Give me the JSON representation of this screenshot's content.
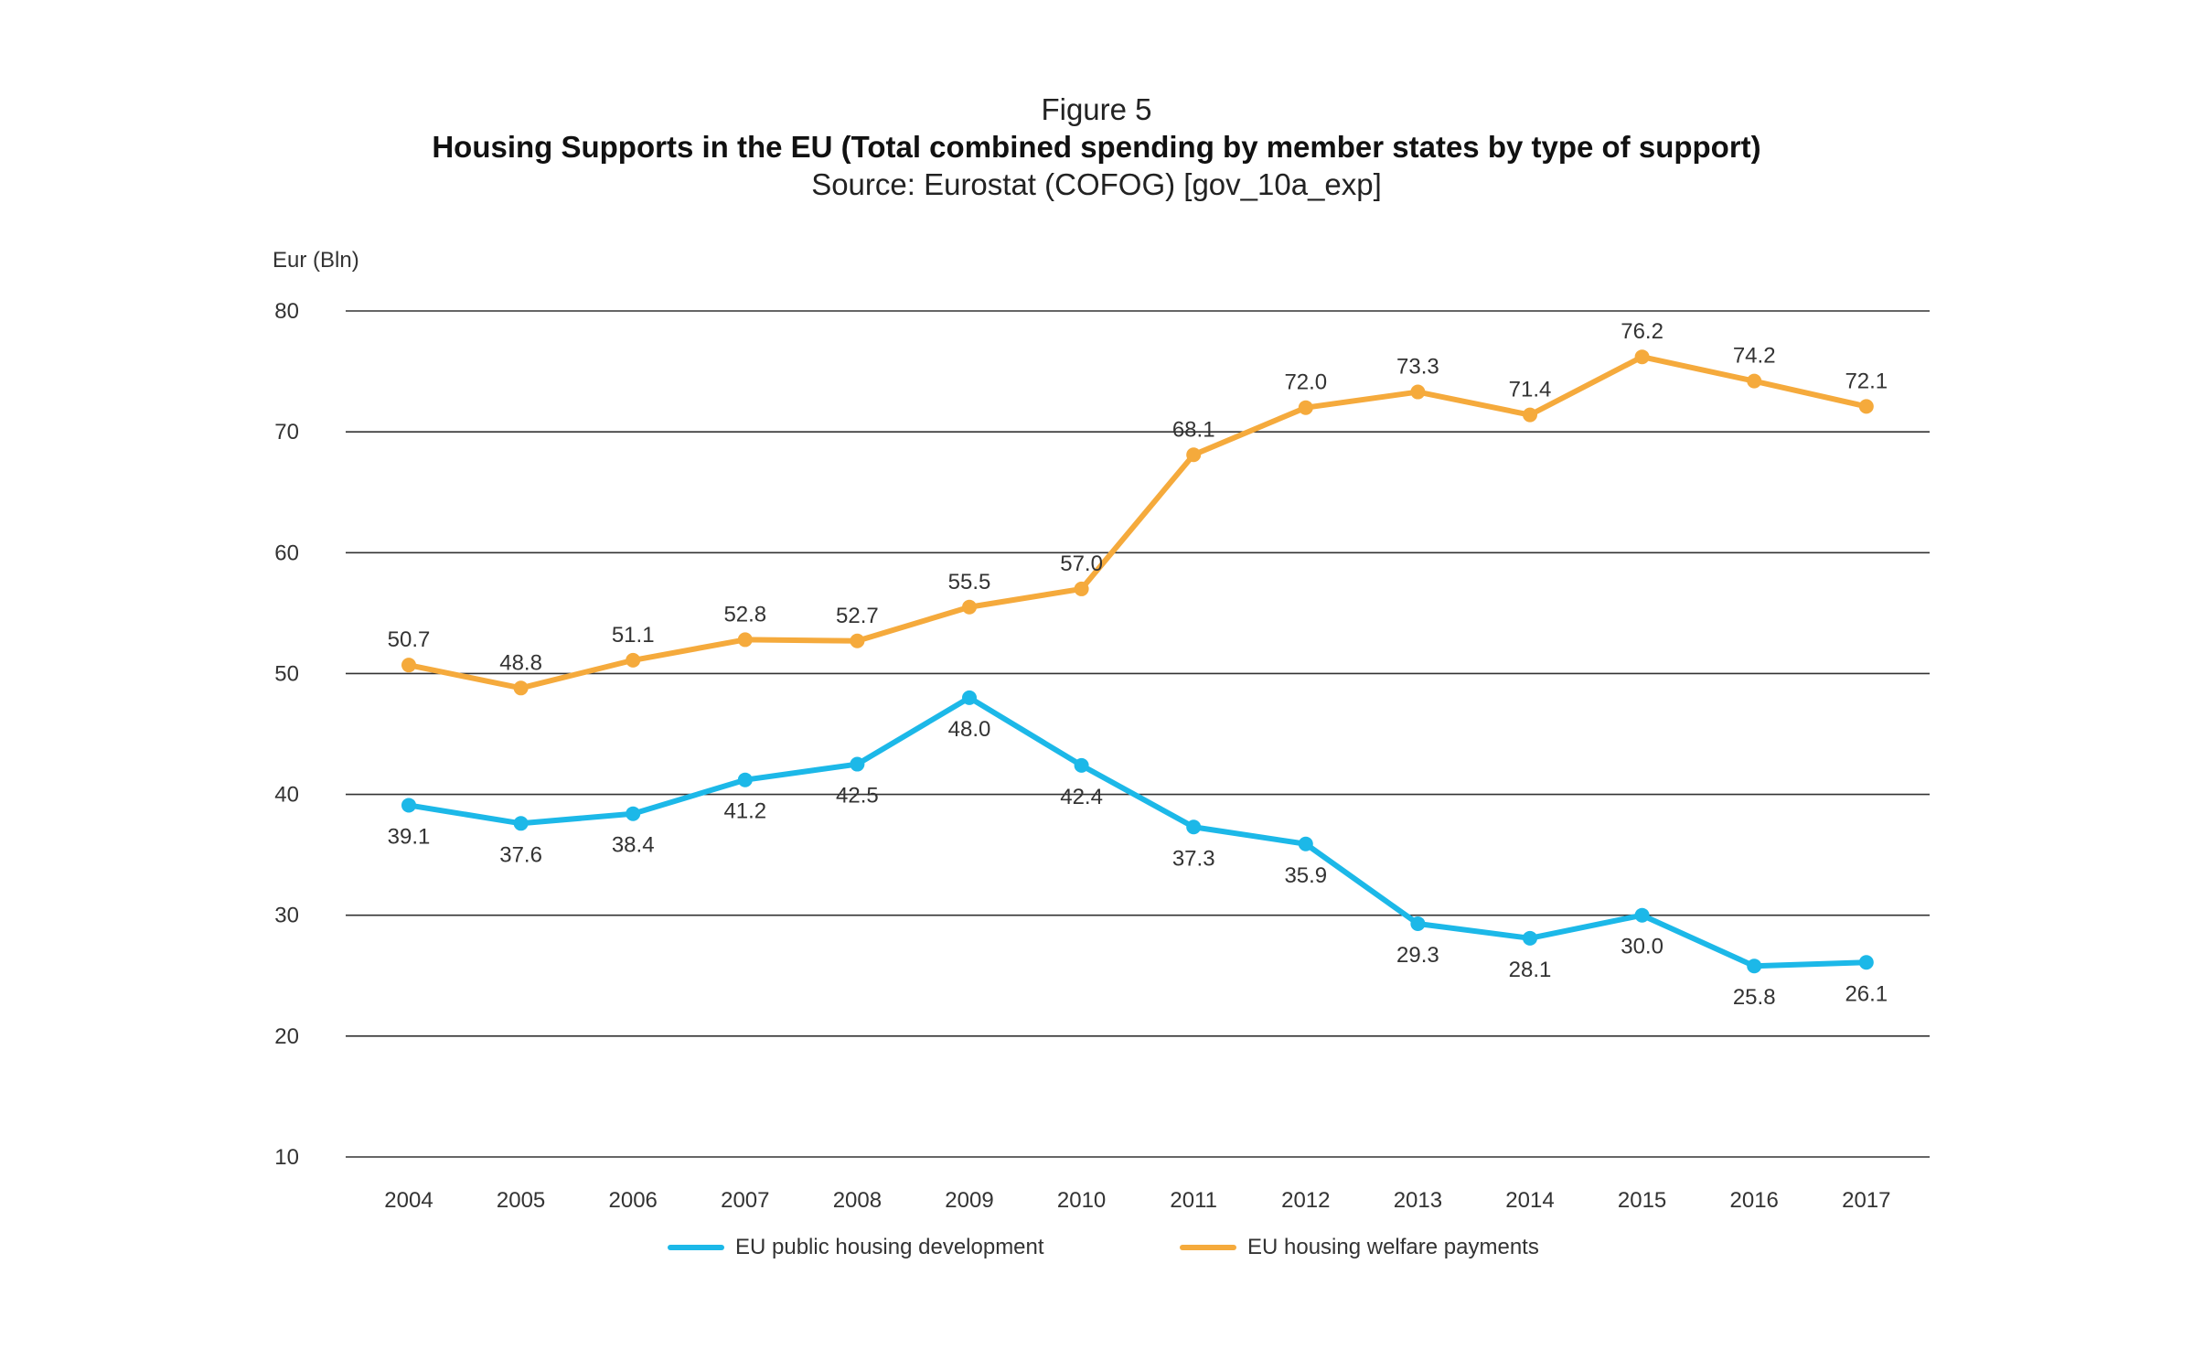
{
  "figure": {
    "label": "Figure 5",
    "title": "Housing Supports in the EU (Total combined spending by member states by type of support)",
    "source": "Source: Eurostat (COFOG) [gov_10a_exp]"
  },
  "chart_data": {
    "type": "line",
    "ylabel": "Eur (Bln)",
    "xlabel": "",
    "ylim": [
      10,
      80
    ],
    "yticks": [
      "10",
      "20",
      "30",
      "40",
      "50",
      "60",
      "70",
      "80"
    ],
    "categories": [
      "2004",
      "2005",
      "2006",
      "2007",
      "2008",
      "2009",
      "2010",
      "2011",
      "2012",
      "2013",
      "2014",
      "2015",
      "2016",
      "2017"
    ],
    "grid": "horizontal",
    "legend_position": "bottom",
    "series": [
      {
        "name": "EU public housing development",
        "color": "#1cb8e8",
        "values": [
          39.1,
          37.6,
          38.4,
          41.2,
          42.5,
          48.0,
          42.4,
          37.3,
          35.9,
          29.3,
          28.1,
          30.0,
          25.8,
          26.1
        ],
        "labels": [
          "39.1",
          "37.6",
          "38.4",
          "41.2",
          "42.5",
          "48.0",
          "42.4",
          "37.3",
          "35.9",
          "29.3",
          "28.1",
          "30.0",
          "25.8",
          "26.1"
        ],
        "label_position": "below"
      },
      {
        "name": "EU housing welfare payments",
        "color": "#f5aa3c",
        "values": [
          50.7,
          48.8,
          51.1,
          52.8,
          52.7,
          55.5,
          57.0,
          68.1,
          72.0,
          73.3,
          71.4,
          76.2,
          74.2,
          72.1
        ],
        "labels": [
          "50.7",
          "48.8",
          "51.1",
          "52.8",
          "52.7",
          "55.5",
          "57.0",
          "68.1",
          "72.0",
          "73.3",
          "71.4",
          "76.2",
          "74.2",
          "72.1"
        ],
        "label_position": "above"
      }
    ]
  }
}
